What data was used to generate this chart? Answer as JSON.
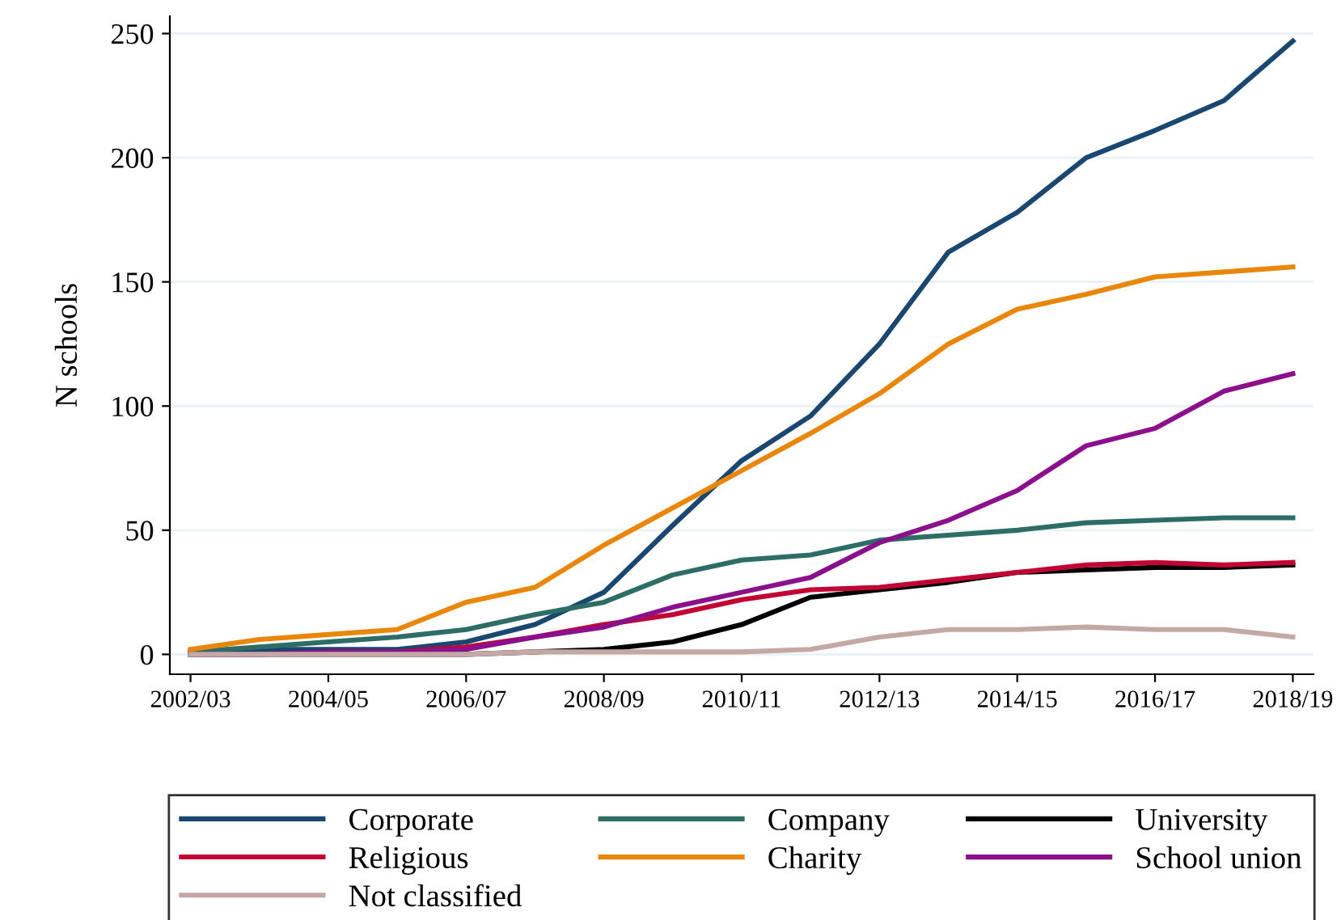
{
  "chart_data": {
    "type": "line",
    "ylabel": "N schools",
    "categories": [
      "2002/03",
      null,
      "2004/05",
      null,
      "2006/07",
      null,
      "2008/09",
      null,
      "2010/11",
      null,
      "2012/13",
      null,
      "2014/15",
      null,
      "2016/17",
      null,
      "2018/19"
    ],
    "series": [
      {
        "name": "Corporate",
        "color": "#1a476f",
        "values": [
          1,
          2,
          2,
          2,
          5,
          12,
          25,
          52,
          78,
          96,
          125,
          162,
          178,
          200,
          211,
          223,
          247
        ]
      },
      {
        "name": "Company",
        "color": "#2d6d66",
        "values": [
          1,
          3,
          5,
          7,
          10,
          16,
          21,
          32,
          38,
          40,
          46,
          48,
          50,
          53,
          54,
          55,
          55
        ]
      },
      {
        "name": "University",
        "color": "#000000",
        "values": [
          0,
          0,
          0,
          0,
          0,
          1,
          2,
          5,
          12,
          23,
          26,
          29,
          33,
          34,
          35,
          35,
          36
        ]
      },
      {
        "name": "Religious",
        "color": "#c10534",
        "values": [
          null,
          null,
          1,
          1,
          3,
          7,
          12,
          16,
          22,
          26,
          27,
          30,
          33,
          36,
          37,
          36,
          37
        ]
      },
      {
        "name": "Charity",
        "color": "#e8870c",
        "values": [
          2,
          6,
          8,
          10,
          21,
          27,
          44,
          59,
          74,
          89,
          105,
          125,
          139,
          145,
          152,
          154,
          156
        ]
      },
      {
        "name": "School union",
        "color": "#8b108b",
        "values": [
          0,
          0,
          1,
          1,
          2,
          7,
          11,
          19,
          25,
          31,
          45,
          54,
          66,
          84,
          91,
          106,
          113
        ]
      },
      {
        "name": "Not classified",
        "color": "#c4a8a5",
        "values": [
          0,
          0,
          0,
          0,
          0,
          1,
          1,
          1,
          1,
          2,
          7,
          10,
          10,
          11,
          10,
          10,
          7
        ]
      }
    ],
    "ylim": [
      -8,
      257
    ],
    "yticks": [
      0,
      50,
      100,
      150,
      200,
      250
    ],
    "grid": "y",
    "legend": "bottom",
    "marker": "none",
    "line_style": "solid"
  }
}
